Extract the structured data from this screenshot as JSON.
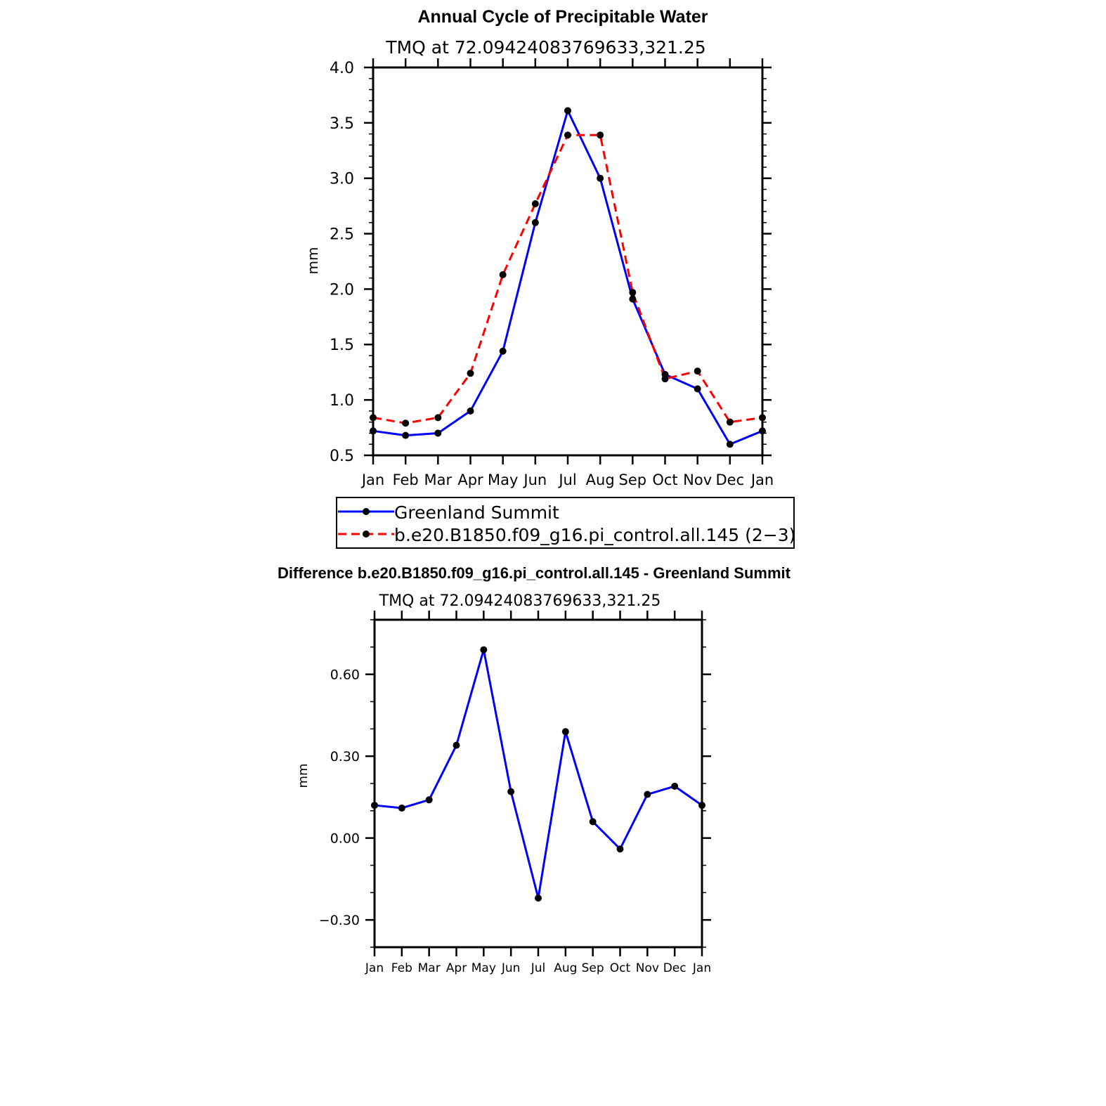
{
  "chart_data": [
    {
      "type": "line",
      "title": "Annual Cycle of Precipitable Water",
      "subtitle": "TMQ at 72.09424083769633,321.25",
      "xlabel": "",
      "ylabel": "mm",
      "categories": [
        "Jan",
        "Feb",
        "Mar",
        "Apr",
        "May",
        "Jun",
        "Jul",
        "Aug",
        "Sep",
        "Oct",
        "Nov",
        "Dec",
        "Jan"
      ],
      "ylim": [
        0.5,
        4.0
      ],
      "yticks": [
        0.5,
        1.0,
        1.5,
        2.0,
        2.5,
        3.0,
        3.5,
        4.0
      ],
      "ytick_labels": [
        "0.5",
        "1.0",
        "1.5",
        "2.0",
        "2.5",
        "3.0",
        "3.5",
        "4.0"
      ],
      "legend_position": "bottom",
      "series": [
        {
          "name": "Greenland Summit",
          "color": "#0000ff",
          "dash": "solid",
          "values": [
            0.72,
            0.68,
            0.7,
            0.9,
            1.44,
            2.6,
            3.61,
            3.0,
            1.91,
            1.23,
            1.1,
            0.6,
            0.72
          ]
        },
        {
          "name": "b.e20.B1850.f09_g16.pi_control.all.145 (2−3)",
          "color": "#ff0000",
          "dash": "dashed",
          "values": [
            0.84,
            0.79,
            0.84,
            1.24,
            2.13,
            2.77,
            3.39,
            3.39,
            1.97,
            1.19,
            1.26,
            0.8,
            0.84
          ]
        }
      ]
    },
    {
      "type": "line",
      "title": "Difference b.e20.B1850.f09_g16.pi_control.all.145 - Greenland Summit",
      "subtitle": "TMQ at 72.09424083769633,321.25",
      "xlabel": "",
      "ylabel": "mm",
      "categories": [
        "Jan",
        "Feb",
        "Mar",
        "Apr",
        "May",
        "Jun",
        "Jul",
        "Aug",
        "Sep",
        "Oct",
        "Nov",
        "Dec",
        "Jan"
      ],
      "ylim": [
        -0.4,
        0.8
      ],
      "yticks": [
        -0.3,
        0.0,
        0.3,
        0.6
      ],
      "ytick_labels": [
        "−0.30",
        "0.00",
        "0.30",
        "0.60"
      ],
      "series": [
        {
          "name": "Difference",
          "color": "#0000ff",
          "dash": "solid",
          "values": [
            0.12,
            0.11,
            0.14,
            0.34,
            0.69,
            0.17,
            -0.22,
            0.39,
            0.06,
            -0.04,
            0.16,
            0.19,
            0.12
          ]
        }
      ]
    }
  ]
}
